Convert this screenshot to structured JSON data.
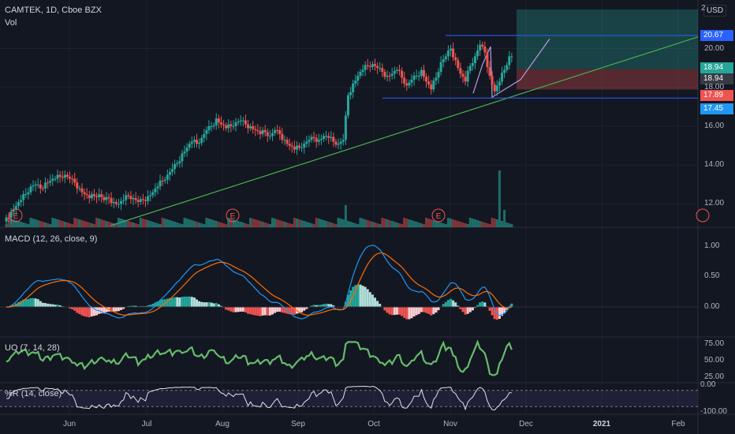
{
  "header": {
    "symbol_line": "CAMTEK, 1D, Cboe BZX",
    "volume_label": "Vol",
    "currency": "USD"
  },
  "price_axis": {
    "ticks": [
      "20.00",
      "18.00",
      "16.00",
      "14.00",
      "12.00"
    ],
    "top_tick_partial": "2"
  },
  "price_tags": [
    {
      "value": "20.67",
      "color": "#2962ff"
    },
    {
      "value": "18.94",
      "color": "#26a69a"
    },
    {
      "value": "18.94",
      "color": "#363a45"
    },
    {
      "value": "17.89",
      "color": "#ef5350"
    },
    {
      "value": "17.45",
      "color": "#2196f3"
    }
  ],
  "earnings_markers": [
    "E",
    "E",
    "E"
  ],
  "macd": {
    "title": "MACD (12, 26, close, 9)",
    "ticks": [
      "1.00",
      "0.50",
      "0.00"
    ]
  },
  "uo": {
    "title": "UO (7, 14, 28)",
    "ticks": [
      "75.00",
      "50.00",
      "25.00"
    ]
  },
  "wr": {
    "title": "%R (14, close)",
    "ticks": [
      "0.00",
      "-100.00"
    ]
  },
  "time_axis": [
    "Jun",
    "Jul",
    "Aug",
    "Sep",
    "Oct",
    "Nov",
    "Dec",
    "2021",
    "Feb"
  ],
  "chart_data": {
    "type": "candlestick",
    "title": "CAMTEK, 1D, Cboe BZX",
    "ylim": [
      10.8,
      22.5
    ],
    "close_series": [
      11.3,
      11.6,
      11.9,
      12.2,
      12.5,
      12.9,
      13.0,
      12.8,
      13.1,
      13.2,
      13.3,
      13.4,
      13.5,
      13.3,
      13.1,
      12.8,
      12.5,
      12.3,
      12.4,
      12.5,
      12.2,
      12.3,
      12.1,
      12.0,
      12.2,
      12.4,
      12.3,
      12.1,
      12.2,
      12.4,
      12.6,
      12.9,
      13.2,
      13.5,
      13.8,
      14.1,
      14.6,
      14.9,
      15.2,
      15.1,
      15.4,
      15.8,
      16.0,
      16.4,
      16.1,
      15.9,
      16.0,
      16.2,
      16.3,
      16.1,
      16.0,
      15.8,
      15.6,
      15.7,
      15.5,
      15.8,
      15.6,
      15.3,
      15.0,
      14.8,
      14.9,
      15.1,
      15.3,
      15.4,
      15.3,
      15.5,
      15.4,
      15.2,
      15.1,
      15.3,
      17.6,
      18.2,
      18.6,
      18.9,
      19.1,
      19.2,
      19.0,
      18.8,
      18.6,
      18.7,
      18.9,
      18.5,
      18.1,
      18.4,
      18.6,
      18.9,
      18.3,
      17.9,
      18.5,
      19.3,
      19.6,
      20.0,
      19.4,
      18.7,
      18.3,
      19.1,
      19.6,
      20.2,
      19.8,
      18.6,
      17.8,
      18.3,
      18.9,
      19.6
    ],
    "reference_levels": [
      20.67,
      18.94,
      17.89,
      17.45
    ]
  }
}
